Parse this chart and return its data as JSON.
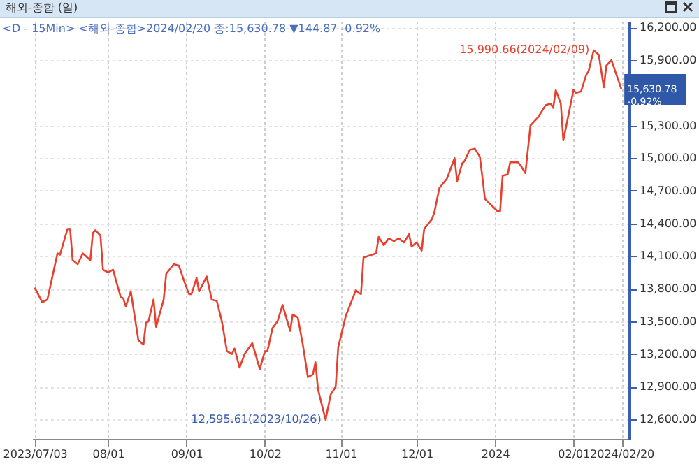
{
  "chart_data": {
    "type": "line",
    "title": "해외-종합 (일)",
    "subtitle": "<D - 15Min> <해외-종합>2024/02/20 종:15,630.78 ▼144.87 -0.92%",
    "x": [
      "2023-07-03",
      "2023-07-06",
      "2023-07-08",
      "2023-07-10",
      "2023-07-12",
      "2023-07-13",
      "2023-07-16",
      "2023-07-17",
      "2023-07-18",
      "2023-07-20",
      "2023-07-22",
      "2023-07-25",
      "2023-07-26",
      "2023-07-27",
      "2023-07-29",
      "2023-07-30",
      "2023-08-01",
      "2023-08-03",
      "2023-08-04",
      "2023-08-06",
      "2023-08-07",
      "2023-08-08",
      "2023-08-10",
      "2023-08-11",
      "2023-08-13",
      "2023-08-15",
      "2023-08-16",
      "2023-08-17",
      "2023-08-19",
      "2023-08-20",
      "2023-08-23",
      "2023-08-24",
      "2023-08-27",
      "2023-08-29",
      "2023-08-31",
      "2023-09-02",
      "2023-09-03",
      "2023-09-05",
      "2023-09-06",
      "2023-09-09",
      "2023-09-11",
      "2023-09-13",
      "2023-09-15",
      "2023-09-17",
      "2023-09-19",
      "2023-09-20",
      "2023-09-22",
      "2023-09-24",
      "2023-09-27",
      "2023-09-30",
      "2023-10-02",
      "2023-10-03",
      "2023-10-05",
      "2023-10-07",
      "2023-10-09",
      "2023-10-12",
      "2023-10-13",
      "2023-10-15",
      "2023-10-17",
      "2023-10-19",
      "2023-10-21",
      "2023-10-22",
      "2023-10-23",
      "2023-10-26",
      "2023-10-28",
      "2023-10-30",
      "2023-10-31",
      "2023-11-03",
      "2023-11-07",
      "2023-11-08",
      "2023-11-09",
      "2023-11-10",
      "2023-11-15",
      "2023-11-16",
      "2023-11-18",
      "2023-11-20",
      "2023-11-22",
      "2023-11-24",
      "2023-11-26",
      "2023-11-28",
      "2023-11-29",
      "2023-12-01",
      "2023-12-03",
      "2023-12-04",
      "2023-12-07",
      "2023-12-08",
      "2023-12-10",
      "2023-12-13",
      "2023-12-16",
      "2023-12-17",
      "2023-12-19",
      "2023-12-20",
      "2023-12-22",
      "2023-12-24",
      "2023-12-26",
      "2023-12-27",
      "2023-12-28",
      "2024-01-02",
      "2024-01-03",
      "2024-01-04",
      "2024-01-06",
      "2024-01-07",
      "2024-01-10",
      "2024-01-11",
      "2024-01-13",
      "2024-01-15",
      "2024-01-18",
      "2024-01-21",
      "2024-01-23",
      "2024-01-24",
      "2024-01-25",
      "2024-01-27",
      "2024-01-28",
      "2024-02-01",
      "2024-02-02",
      "2024-02-04",
      "2024-02-06",
      "2024-02-07",
      "2024-02-09",
      "2024-02-11",
      "2024-02-13",
      "2024-02-14",
      "2024-02-16",
      "2024-02-20"
    ],
    "series": [
      {
        "color": "#e8402f",
        "values": [
          13810,
          13675,
          13700,
          13912,
          14125,
          14112,
          14350,
          14350,
          14062,
          14025,
          14125,
          14062,
          14312,
          14337,
          14287,
          13975,
          13950,
          13975,
          13887,
          13725,
          13712,
          13637,
          13775,
          13625,
          13325,
          13287,
          13487,
          13500,
          13700,
          13450,
          13700,
          13937,
          14025,
          14012,
          13875,
          13750,
          13750,
          13900,
          13775,
          13912,
          13700,
          13687,
          13500,
          13225,
          13200,
          13250,
          13075,
          13200,
          13300,
          13062,
          13225,
          13225,
          13437,
          13500,
          13650,
          13412,
          13562,
          13537,
          13287,
          12987,
          13012,
          13125,
          12875,
          12595.61,
          12825,
          12900,
          13262,
          13550,
          13787,
          13762,
          13750,
          14087,
          14125,
          14275,
          14200,
          14262,
          14237,
          14262,
          14225,
          14300,
          14187,
          14225,
          14150,
          14350,
          14437,
          14500,
          14725,
          14812,
          15000,
          14787,
          14950,
          14975,
          15075,
          15087,
          15012,
          14825,
          14625,
          14512,
          14512,
          14837,
          14850,
          14962,
          14962,
          14937,
          14862,
          15300,
          15375,
          15487,
          15500,
          15462,
          15625,
          15500,
          15162,
          15625,
          15600,
          15612,
          15762,
          15800,
          15990.66,
          15950,
          15650,
          15850,
          15900,
          15630.78
        ]
      }
    ],
    "xlim": [
      "2023-07-02",
      "2024-02-23"
    ],
    "xticks": [
      {
        "value": "2023-07-03",
        "label": "2023/07/03"
      },
      {
        "value": "2023-08-01",
        "label": "08/01"
      },
      {
        "value": "2023-09-01",
        "label": "09/01"
      },
      {
        "value": "2023-10-02",
        "label": "10/02"
      },
      {
        "value": "2023-11-01",
        "label": "11/01"
      },
      {
        "value": "2023-12-01",
        "label": "12/01"
      },
      {
        "value": "2024-01-01",
        "label": "2024"
      },
      {
        "value": "2024-02-01",
        "label": "02/01"
      },
      {
        "value": "2024-02-20",
        "label": "2024/02/20"
      }
    ],
    "ylim": [
      12420,
      16260
    ],
    "yticks": [
      {
        "value": 12600,
        "label": "12,600.00"
      },
      {
        "value": 12900,
        "label": "12,900.00"
      },
      {
        "value": 13200,
        "label": "13,200.00"
      },
      {
        "value": 13500,
        "label": "13,500.00"
      },
      {
        "value": 13800,
        "label": "13,800.00"
      },
      {
        "value": 14100,
        "label": "14,100.00"
      },
      {
        "value": 14400,
        "label": "14,400.00"
      },
      {
        "value": 14700,
        "label": "14,700.00"
      },
      {
        "value": 15000,
        "label": "15,000.00"
      },
      {
        "value": 15300,
        "label": "15,300.00"
      },
      {
        "value": 15900,
        "label": "15,900.00"
      },
      {
        "value": 16200,
        "label": "16,200.00"
      }
    ],
    "annotations": [
      {
        "text": "15,990.66(2024/02/09)",
        "x": "2024-02-09",
        "y": 15990.66
      },
      {
        "text": "12,595.61(2023/10/26)",
        "x": "2023-10-26",
        "y": 12595.61
      },
      {
        "text": "15,630.78 -0.92%",
        "x": "2024-02-20",
        "y": 15630.78
      }
    ],
    "grid": true,
    "line_style": "solid"
  }
}
